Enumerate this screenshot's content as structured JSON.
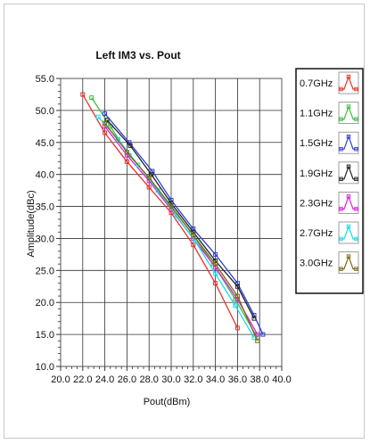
{
  "chart_data": {
    "type": "line",
    "title": "Left IM3 vs. Pout",
    "xlabel": "Pout(dBm)",
    "ylabel": "Amplitude(dBc)",
    "xlim": [
      20.0,
      40.0
    ],
    "ylim": [
      10.0,
      55.0
    ],
    "xticks": [
      "20.0",
      "22.0",
      "24.0",
      "26.0",
      "28.0",
      "30.0",
      "32.0",
      "34.0",
      "36.0",
      "38.0",
      "40.0"
    ],
    "yticks": [
      "10.0",
      "15.0",
      "20.0",
      "25.0",
      "30.0",
      "35.0",
      "40.0",
      "45.0",
      "50.0",
      "55.0"
    ],
    "grid": true,
    "legend_position": "right",
    "series": [
      {
        "name": "0.7GHz",
        "color": "#e8332a",
        "x": [
          22.0,
          24.0,
          26.0,
          28.0,
          30.0,
          32.0,
          34.0,
          36.0
        ],
        "y": [
          52.5,
          46.5,
          42.0,
          38.0,
          34.0,
          29.0,
          23.0,
          16.0
        ]
      },
      {
        "name": "1.1GHz",
        "color": "#3cc03c",
        "x": [
          22.8,
          24.5,
          26.2,
          28.0,
          29.8,
          31.8,
          33.8,
          35.8,
          37.8
        ],
        "y": [
          52.0,
          47.5,
          43.0,
          39.5,
          35.5,
          31.0,
          26.0,
          20.5,
          14.5
        ]
      },
      {
        "name": "1.5GHz",
        "color": "#2b3fd6",
        "x": [
          24.0,
          26.2,
          28.3,
          30.0,
          32.0,
          34.0,
          36.0,
          37.5,
          38.3
        ],
        "y": [
          49.5,
          45.0,
          40.5,
          36.0,
          31.5,
          27.5,
          23.0,
          18.0,
          15.0
        ]
      },
      {
        "name": "1.9GHz",
        "color": "#222222",
        "x": [
          24.2,
          26.3,
          28.2,
          30.0,
          32.0,
          34.0,
          36.0,
          37.5
        ],
        "y": [
          48.5,
          44.5,
          40.0,
          35.5,
          31.0,
          26.5,
          22.5,
          17.5
        ]
      },
      {
        "name": "2.3GHz",
        "color": "#e01ee0",
        "x": [
          24.0,
          26.0,
          28.0,
          30.0,
          32.0,
          34.0,
          36.0,
          37.8
        ],
        "y": [
          47.5,
          43.0,
          39.0,
          34.5,
          30.0,
          25.5,
          20.5,
          15.0
        ]
      },
      {
        "name": "2.7GHz",
        "color": "#1ed8e8",
        "x": [
          23.4,
          25.2,
          27.0,
          28.8,
          30.5,
          32.2,
          34.0,
          35.8,
          37.5
        ],
        "y": [
          49.0,
          45.5,
          41.5,
          37.5,
          33.5,
          29.5,
          24.5,
          19.5,
          14.5
        ]
      },
      {
        "name": "3.0GHz",
        "color": "#7a6a14",
        "x": [
          24.0,
          26.0,
          28.0,
          30.0,
          32.0,
          34.0,
          36.0,
          37.8
        ],
        "y": [
          48.0,
          43.5,
          39.5,
          35.0,
          30.5,
          26.0,
          21.0,
          14.0
        ]
      }
    ]
  }
}
